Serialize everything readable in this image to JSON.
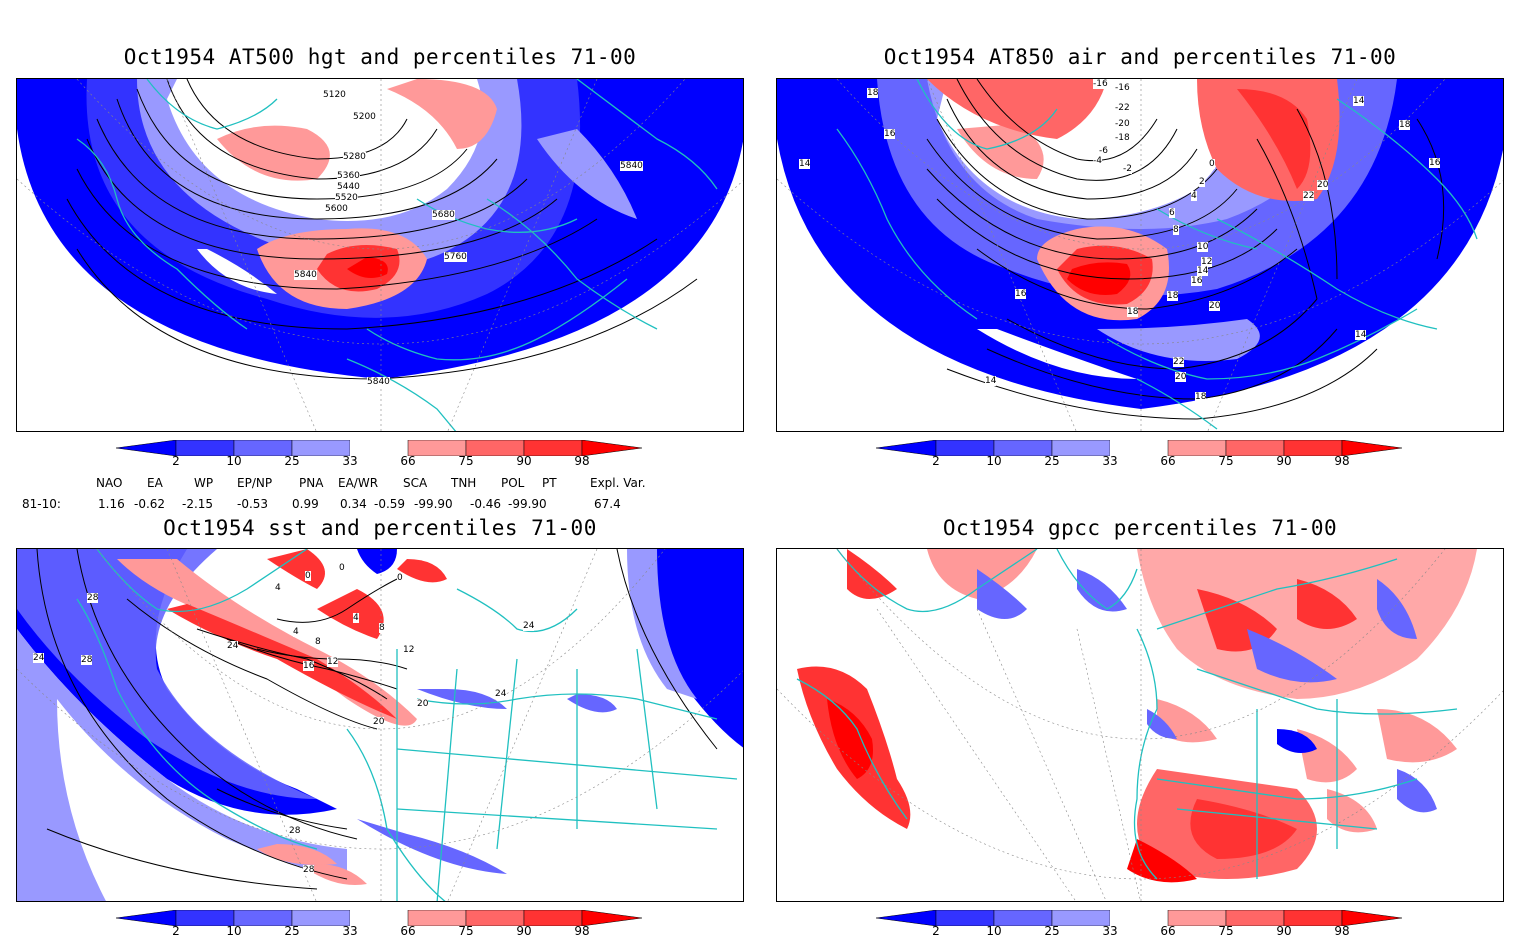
{
  "panels": [
    {
      "title": "Oct1954 AT500 hgt and percentiles 71-00",
      "contour_labels": [
        "5120",
        "5200",
        "5280",
        "5360",
        "5440",
        "5520",
        "5600",
        "5680",
        "5760",
        "5840",
        "5840",
        "5840"
      ]
    },
    {
      "title": "Oct1954 AT850 air and percentiles 71-00",
      "contour_labels": [
        "18",
        "16",
        "14",
        "-16",
        "-16",
        "-22",
        "-20",
        "-18",
        "-6",
        "-4",
        "-2",
        "0",
        "2",
        "4",
        "6",
        "8",
        "10",
        "12",
        "14",
        "16",
        "18",
        "20",
        "22",
        "20",
        "18",
        "16",
        "14",
        "18",
        "16",
        "14",
        "14",
        "18",
        "20",
        "22"
      ]
    },
    {
      "title": "Oct1954 sst and percentiles 71-00",
      "contour_labels": [
        "28",
        "24",
        "28",
        "24",
        "4",
        "0",
        "0",
        "0",
        "4",
        "8",
        "12",
        "16",
        "20",
        "24",
        "4",
        "8",
        "12",
        "20",
        "24",
        "28",
        "28"
      ]
    },
    {
      "title": "Oct1954 gpcc percentiles 71-00",
      "contour_labels": []
    }
  ],
  "colorbar": {
    "labels": [
      "2",
      "10",
      "25",
      "33",
      "66",
      "75",
      "90",
      "98"
    ],
    "colors": [
      "#0000ff",
      "#3333ff",
      "#6666ff",
      "#9999ff",
      "#ffffff",
      "#ff9999",
      "#ff6666",
      "#ff3333",
      "#ff0000"
    ]
  },
  "indices": {
    "headers": [
      "NAO",
      "EA",
      "WP",
      "EP/NP",
      "PNA",
      "EA/WR",
      "SCA",
      "TNH",
      "POL",
      "PT",
      "Expl. Var."
    ],
    "row_label": "81-10:",
    "values": [
      "1.16",
      "-0.62",
      "-2.15",
      "-0.53",
      "0.99",
      "0.34",
      "-0.59",
      "-99.90",
      "-0.46",
      "-99.90",
      "67.4"
    ]
  },
  "colors": {
    "coast": "#20c0c0",
    "contour": "#000000",
    "grid": "#888888"
  }
}
